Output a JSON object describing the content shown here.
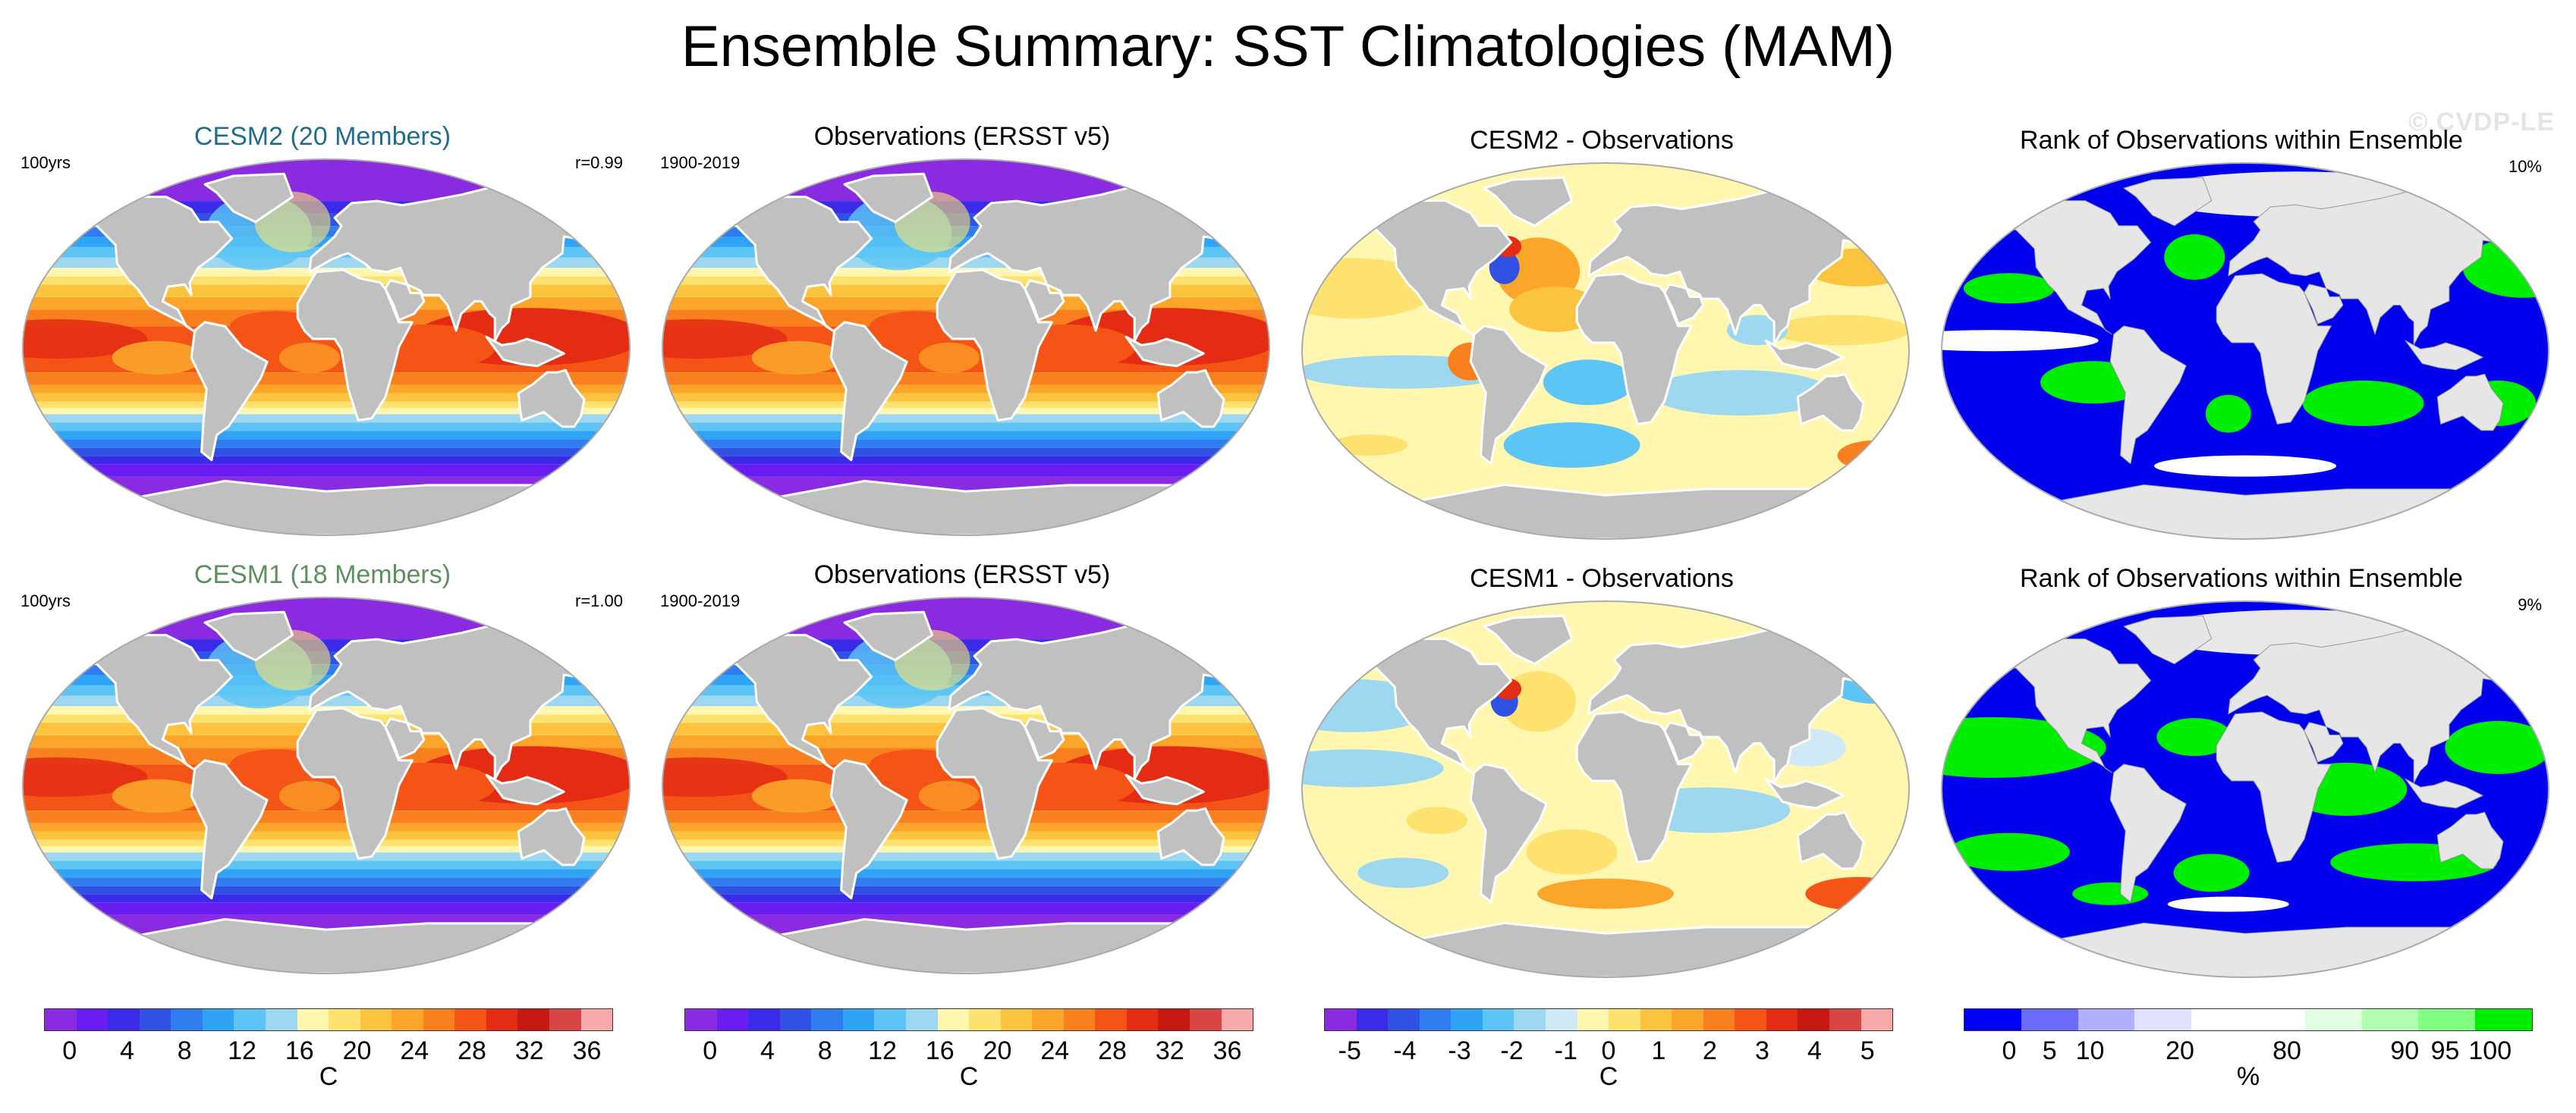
{
  "figure": {
    "title": "Ensemble Summary: SST Climatologies (MAM)",
    "watermark": "© CVDP-LE"
  },
  "colors": {
    "land": "#c0c0c0",
    "coast": "#ffffff",
    "cesm2_title": "#1f6e8c",
    "cesm1_title": "#5e8f5e",
    "sst_palette": [
      "#8a2be2",
      "#6a1df0",
      "#3a2be8",
      "#2f52e4",
      "#2f7df0",
      "#2fa3f5",
      "#5cc5f5",
      "#9ed8f0",
      "#fff7b0",
      "#fde26f",
      "#fcc43e",
      "#fba52a",
      "#f9801e",
      "#f45516",
      "#e42b14",
      "#c81812",
      "#d84545",
      "#f7a8a8"
    ],
    "diff_palette": [
      "#8a2be2",
      "#3a2be8",
      "#2f52e4",
      "#2f7df0",
      "#2fa3f5",
      "#5cc5f5",
      "#9ed8f0",
      "#cfe9f7",
      "#fff7b0",
      "#fde26f",
      "#fcc43e",
      "#fba52a",
      "#f9801e",
      "#f45516",
      "#e42b14",
      "#c81812",
      "#d84545",
      "#f7a8a8"
    ],
    "rank_palette": [
      "#0000ff",
      "#6a6aff",
      "#b0b0ff",
      "#e0e0ff",
      "#ffffff",
      "#ffffff",
      "#e0ffe0",
      "#b0ffb0",
      "#80ff80",
      "#00ee00"
    ]
  },
  "panels": [
    {
      "title": "CESM2 (20 Members)",
      "left": "100yrs",
      "right": "r=0.99",
      "kind": "sst"
    },
    {
      "title": "Observations (ERSST v5)",
      "left": "1900-2019",
      "right": "",
      "kind": "sst"
    },
    {
      "title": "CESM2 - Observations",
      "left": "",
      "right": "",
      "kind": "diff"
    },
    {
      "title": "Rank of Observations within Ensemble",
      "left": "",
      "right": "10%",
      "kind": "rank"
    },
    {
      "title": "CESM1 (18 Members)",
      "left": "100yrs",
      "right": "r=1.00",
      "kind": "sst"
    },
    {
      "title": "Observations (ERSST v5)",
      "left": "1900-2019",
      "right": "",
      "kind": "sst"
    },
    {
      "title": "CESM1 - Observations",
      "left": "",
      "right": "",
      "kind": "diff"
    },
    {
      "title": "Rank of Observations within Ensemble",
      "left": "",
      "right": "9%",
      "kind": "rank"
    }
  ],
  "colorbars": [
    {
      "ticks": [
        "0",
        "4",
        "8",
        "12",
        "16",
        "20",
        "24",
        "28",
        "32",
        "36"
      ],
      "unit": "C"
    },
    {
      "ticks": [
        "0",
        "4",
        "8",
        "12",
        "16",
        "20",
        "24",
        "28",
        "32",
        "36"
      ],
      "unit": "C"
    },
    {
      "ticks": [
        "-5",
        "-4",
        "-3",
        "-2",
        "-1",
        "0",
        "1",
        "2",
        "3",
        "4",
        "5"
      ],
      "unit": "C"
    },
    {
      "ticks": [
        "0",
        "5",
        "10",
        "20",
        "80",
        "90",
        "95",
        "100"
      ],
      "unit": "%"
    }
  ]
}
